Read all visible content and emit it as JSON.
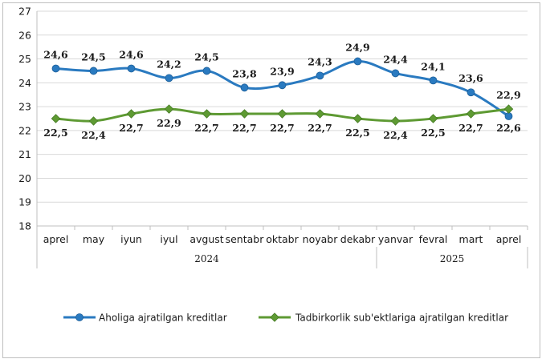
{
  "chart_data": {
    "type": "line",
    "title": "",
    "xlabel": "",
    "ylabel": "",
    "ylim": [
      18,
      27
    ],
    "yticks": [
      18,
      19,
      20,
      21,
      22,
      23,
      24,
      25,
      26,
      27
    ],
    "grid": true,
    "categories": [
      "aprel",
      "may",
      "iyun",
      "iyul",
      "avgust",
      "sentabr",
      "oktabr",
      "noyabr",
      "dekabr",
      "yanvar",
      "fevral",
      "mart",
      "aprel"
    ],
    "year_groups": [
      {
        "label": "2024",
        "start": 0,
        "end": 8
      },
      {
        "label": "2025",
        "start": 9,
        "end": 12
      }
    ],
    "series": [
      {
        "name": "Aholiga ajratilgan kreditlar",
        "color": "#2a7ac0",
        "marker": "circle",
        "values": [
          24.6,
          24.5,
          24.6,
          24.2,
          24.5,
          23.8,
          23.9,
          24.3,
          24.9,
          24.4,
          24.1,
          23.6,
          22.6
        ],
        "labels": [
          "24,6",
          "24,5",
          "24,6",
          "24,2",
          "24,5",
          "23,8",
          "23,9",
          "24,3",
          "24,9",
          "24,4",
          "24,1",
          "23,6",
          "22,6"
        ]
      },
      {
        "name": "Tadbirkorlik sub'ektlariga ajratilgan kreditlar",
        "color": "#5e9a33",
        "marker": "diamond",
        "values": [
          22.5,
          22.4,
          22.7,
          22.9,
          22.7,
          22.7,
          22.7,
          22.7,
          22.5,
          22.4,
          22.5,
          22.7,
          22.9
        ],
        "labels": [
          "22,5",
          "22,4",
          "22,7",
          "22,9",
          "22,7",
          "22,7",
          "22,7",
          "22,7",
          "22,5",
          "22,4",
          "22,5",
          "22,7",
          "22,9"
        ]
      }
    ],
    "legend": "bottom"
  }
}
